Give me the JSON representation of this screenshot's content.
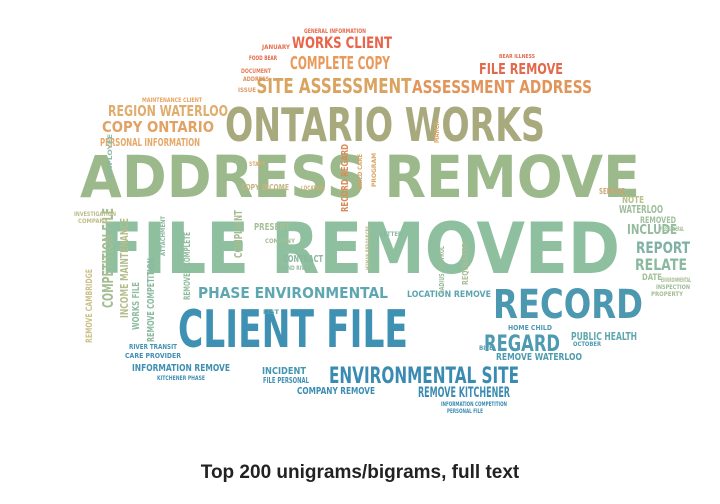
{
  "chart_data": {
    "type": "wordcloud",
    "title": "Top 200 unigrams/bigrams, full text",
    "words": [
      {
        "text": "FILE REMOVED",
        "color": "#8ec0a0"
      },
      {
        "text": "ADDRESS REMOVE",
        "color": "#9cb98c"
      },
      {
        "text": "ONTARIO WORKS",
        "color": "#a9a97e"
      },
      {
        "text": "CLIENT FILE",
        "color": "#3f91b3"
      },
      {
        "text": "RECORD",
        "color": "#4b98b0"
      },
      {
        "text": "ENVIRONMENTAL SITE",
        "color": "#3a8bb2"
      },
      {
        "text": "PHASE ENVIRONMENTAL",
        "color": "#5ea7b0"
      },
      {
        "text": "SITE ASSESSMENT",
        "color": "#d9a360"
      },
      {
        "text": "ASSESSMENT ADDRESS",
        "color": "#e2955a"
      },
      {
        "text": "COMPLETE COPY",
        "color": "#e89a5c"
      },
      {
        "text": "WORKS CLIENT",
        "color": "#e8644a"
      },
      {
        "text": "FILE REMOVE",
        "color": "#e2694c"
      },
      {
        "text": "REGION WATERLOO",
        "color": "#dfad6e"
      },
      {
        "text": "COPY ONTARIO",
        "color": "#e1a265"
      },
      {
        "text": "PERSONAL INFORMATION",
        "color": "#e4a869"
      },
      {
        "text": "REGARD",
        "color": "#4d9ab1"
      },
      {
        "text": "REMOVE KITCHENER",
        "color": "#3a8bb2"
      },
      {
        "text": "REPORT",
        "color": "#7fb2a5"
      },
      {
        "text": "RELATE",
        "color": "#8bb9a0"
      },
      {
        "text": "INCLUDE",
        "color": "#93bb9f"
      },
      {
        "text": "WATERLOO",
        "color": "#9dbd9c"
      },
      {
        "text": "REMOVED",
        "color": "#a0bf9b"
      },
      {
        "text": "NOTE",
        "color": "#b8c28d"
      },
      {
        "text": "PUBLIC HEALTH",
        "color": "#5fa7ae"
      },
      {
        "text": "REMOVE WATERLOO",
        "color": "#4e9bb0"
      },
      {
        "text": "LOCATION REMOVE",
        "color": "#5ba5b0"
      },
      {
        "text": "INFORMATION REMOVE",
        "color": "#3f8fb1"
      },
      {
        "text": "COMPANY REMOVE",
        "color": "#3c8db2"
      },
      {
        "text": "INCIDENT",
        "color": "#4395b2"
      },
      {
        "text": "FILE PERSONAL",
        "color": "#3f8fb1"
      },
      {
        "text": "CONTRACT",
        "color": "#8ab79e"
      },
      {
        "text": "PRESENT",
        "color": "#a7bf97"
      },
      {
        "text": "COMPLAINT",
        "color": "#a6bc93"
      },
      {
        "text": "COPY INCOME",
        "color": "#c2b77f"
      },
      {
        "text": "COMPETITION FILE",
        "color": "#a5bd92"
      },
      {
        "text": "INCOME MAINTENANCE",
        "color": "#b4bd8c"
      },
      {
        "text": "REMOVE CAMBRIDGE",
        "color": "#c9c08a"
      },
      {
        "text": "WORKS FILE",
        "color": "#8fbb9e"
      },
      {
        "text": "REMOVE COMPETITION",
        "color": "#8ab8a0"
      },
      {
        "text": "REMOVED COMPLETE",
        "color": "#90bb9c"
      },
      {
        "text": "RECORD REGARD",
        "color": "#d88c58"
      },
      {
        "text": "HUMAN RESOURCES",
        "color": "#b4bd8c"
      },
      {
        "text": "RADIUS CONTROL",
        "color": "#9bbc9a"
      },
      {
        "text": "DATE",
        "color": "#a3be99"
      },
      {
        "text": "SERVICE",
        "color": "#c8a774"
      },
      {
        "text": "CARE PROVIDER",
        "color": "#3f8fb1"
      },
      {
        "text": "RIVER TRANSIT",
        "color": "#4193b1"
      },
      {
        "text": "HOME CHILD",
        "color": "#4d99b0"
      },
      {
        "text": "INFORMATION COMPETITION",
        "color": "#3a8bb2"
      },
      {
        "text": "PERSONAL FILE",
        "color": "#3d8eb2"
      },
      {
        "text": "MAINTENANCE CLIENT",
        "color": "#e6a462"
      },
      {
        "text": "GENERAL INFORMATION",
        "color": "#e46b4d"
      },
      {
        "text": "JANUARY",
        "color": "#e6704e"
      },
      {
        "text": "FOOD BEAR",
        "color": "#e26a4c"
      },
      {
        "text": "DOCUMENT",
        "color": "#e37c52"
      },
      {
        "text": "ADDRESS",
        "color": "#e0915a"
      },
      {
        "text": "MARCH",
        "color": "#df9a60"
      },
      {
        "text": "BEAR ILLNESS",
        "color": "#e26a4c"
      },
      {
        "text": "ISSUE",
        "color": "#dda866"
      },
      {
        "text": "REQUESTER",
        "color": "#a8bd95"
      },
      {
        "text": "BITE",
        "color": "#4e9bb0"
      },
      {
        "text": "OCTOBER",
        "color": "#4b98b0"
      },
      {
        "text": "APRIL",
        "color": "#4c99b1"
      },
      {
        "text": "KITCHENER PHASE",
        "color": "#3f8fb1"
      },
      {
        "text": "LIST",
        "color": "#5aa3af"
      },
      {
        "text": "LETTER",
        "color": "#8bb9a0"
      },
      {
        "text": "LOCATION",
        "color": "#c9b17b"
      },
      {
        "text": "PROGRAM",
        "color": "#d8a665"
      },
      {
        "text": "CHILD CARE",
        "color": "#d7a264"
      },
      {
        "text": "STAFF",
        "color": "#dbac6c"
      },
      {
        "text": "GRAND RIVER",
        "color": "#91ba9e"
      },
      {
        "text": "ATTACHMENT",
        "color": "#8ab79e"
      },
      {
        "text": "COMPANY",
        "color": "#a2bd96"
      },
      {
        "text": "INVESTIGATION",
        "color": "#b8bd8b"
      },
      {
        "text": "EMPLOYEE",
        "color": "#c3bc86"
      },
      {
        "text": "ENVIRONMENTAL",
        "color": "#8ab9a0"
      },
      {
        "text": "PROPERTY",
        "color": "#a9be95"
      },
      {
        "text": "INSPECTION",
        "color": "#a6bd96"
      },
      {
        "text": "FILE GENERAL",
        "color": "#9ebd99"
      },
      {
        "text": "STREET",
        "color": "#a3be99"
      }
    ]
  }
}
